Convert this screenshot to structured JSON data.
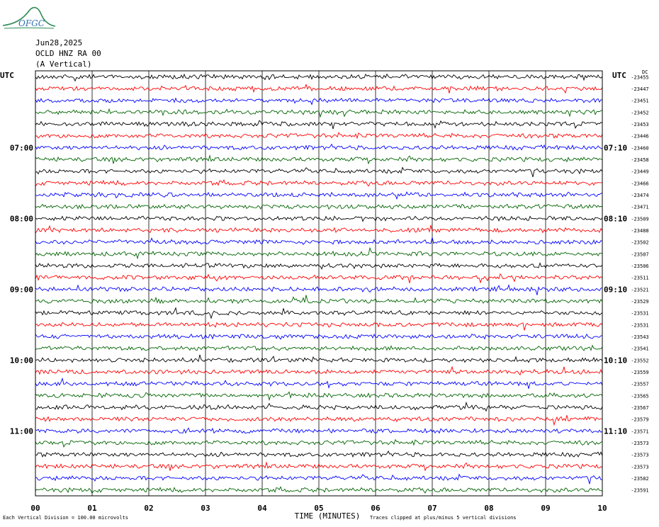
{
  "header": {
    "date": "Jun28,2025",
    "station": "OCLD HNZ RA 00",
    "component": "(A Vertical)",
    "logo_text": "OFGC"
  },
  "footer": {
    "scale_note": "Each Vertical Division = 100.00 microvolts",
    "clip_note": "Traces clipped at plus/minus 5 vertical divisions"
  },
  "colors": {
    "trace_cycle": [
      "#000000",
      "#ff0000",
      "#0000ff",
      "#006400"
    ],
    "logo": "#2e8b57"
  },
  "chart_data": {
    "type": "line",
    "title": "",
    "xlabel": "TIME (MINUTES)",
    "x_ticks": [
      "00",
      "01",
      "02",
      "03",
      "04",
      "05",
      "06",
      "07",
      "08",
      "09",
      "10"
    ],
    "xlim": [
      0,
      10
    ],
    "left_axis_label": "UTC",
    "right_axis_label": "UTC",
    "right_top_label": "DC",
    "left_time_labels": [
      "07:00",
      "08:00",
      "09:00",
      "10:00",
      "11:00"
    ],
    "right_time_labels": [
      "07:10",
      "08:10",
      "09:10",
      "10:10",
      "11:10"
    ],
    "traces_per_hour": 6,
    "first_labeled_row": 6,
    "dc_offsets": [
      "-23455",
      "-23447",
      "-23451",
      "-23452",
      "-23453",
      "-23446",
      "-23460",
      "-23458",
      "-23449",
      "-23466",
      "-23474",
      "-23471",
      "-23509",
      "-23488",
      "-23502",
      "-23507",
      "-23506",
      "-23511",
      "-23521",
      "-23529",
      "-23531",
      "-23531",
      "-23543",
      "-23541",
      "-23552",
      "-23559",
      "-23557",
      "-23565",
      "-23567",
      "-23579",
      "-23571",
      "-23573",
      "-23573",
      "-23573",
      "-23582",
      "-23591"
    ],
    "grid": true
  }
}
